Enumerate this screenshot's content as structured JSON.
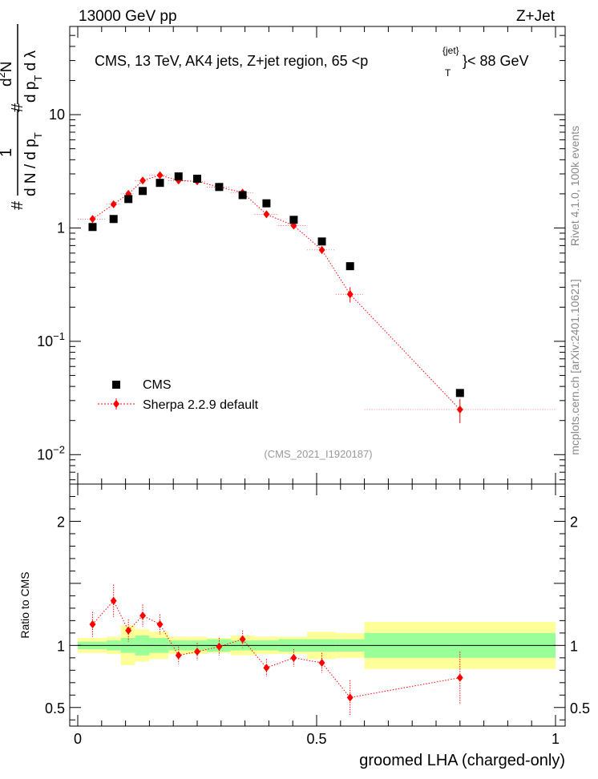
{
  "header": {
    "left": "13000 GeV pp",
    "right": "Z+Jet"
  },
  "side_text": {
    "rivet": "Rivet 4.1.0,  100k events",
    "mcplots": "mcplots.cern.ch [arXiv:2401.10621]"
  },
  "watermark": "(CMS_2021_I1920187)",
  "main_title": {
    "prefix": "CMS, 13 TeV, AK4 jets, Z+jet region, 65 <p",
    "sup": "{jet}",
    "sub": "T",
    "suffix": "}< 88 GeV"
  },
  "ylabel": {
    "hash1": "#",
    "one": "1",
    "denom": "d N / d p",
    "denom_sub": "T",
    "hash2": "#",
    "num": "d",
    "num_sup": "2",
    "num_rest": "N",
    "den2": "d p",
    "den2_sub": "T",
    "den2_rest": " d λ"
  },
  "ratio_ylabel": "Ratio to CMS",
  "xlabel": "groomed LHA (charged-only)",
  "legend": {
    "cms": "CMS",
    "sherpa": "Sherpa 2.2.9 default"
  },
  "colors": {
    "mc": "#ff0000",
    "band_yellow": "#ffff99",
    "band_green": "#99ff99",
    "data": "#000000"
  },
  "chart_data": {
    "type": "scatter",
    "title": "CMS, 13 TeV, AK4 jets, Z+jet region, 65 <p_T^{jet}< 88 GeV",
    "xlabel": "groomed LHA (charged-only)",
    "ylabel": "1/(dN/dp_T) d²N/(dp_T dλ)",
    "xlim": [
      0,
      1
    ],
    "ylim_log": [
      0.0055,
      60
    ],
    "yticks_main": [
      {
        "v": 0.01,
        "base": "10",
        "exp": "−2"
      },
      {
        "v": 0.1,
        "base": "10",
        "exp": "−1"
      },
      {
        "v": 1,
        "base": "1",
        "exp": ""
      },
      {
        "v": 10,
        "base": "10",
        "exp": ""
      }
    ],
    "xticks": [
      {
        "v": 0,
        "label": "0"
      },
      {
        "v": 0.5,
        "label": "0.5"
      },
      {
        "v": 1,
        "label": "1"
      }
    ],
    "bins": [
      {
        "lo": 0.0,
        "hi": 0.06,
        "x": 0.031,
        "cms": 1.02,
        "mc": 1.2,
        "mc_err": 0.08,
        "ratio": 1.17,
        "ratio_err": 0.1,
        "stat": 0.03,
        "tot": 0.06
      },
      {
        "lo": 0.06,
        "hi": 0.09,
        "x": 0.075,
        "cms": 1.2,
        "mc": 1.62,
        "mc_err": 0.1,
        "ratio": 1.36,
        "ratio_err": 0.13,
        "stat": 0.04,
        "tot": 0.07
      },
      {
        "lo": 0.09,
        "hi": 0.12,
        "x": 0.106,
        "cms": 1.8,
        "mc": 2.0,
        "mc_err": 0.12,
        "ratio": 1.12,
        "ratio_err": 0.09,
        "stat": 0.06,
        "tot": 0.16
      },
      {
        "lo": 0.12,
        "hi": 0.15,
        "x": 0.136,
        "cms": 2.12,
        "mc": 2.62,
        "mc_err": 0.14,
        "ratio": 1.24,
        "ratio_err": 0.09,
        "stat": 0.08,
        "tot": 0.13
      },
      {
        "lo": 0.15,
        "hi": 0.19,
        "x": 0.172,
        "cms": 2.5,
        "mc": 2.92,
        "mc_err": 0.15,
        "ratio": 1.17,
        "ratio_err": 0.08,
        "stat": 0.06,
        "tot": 0.11
      },
      {
        "lo": 0.19,
        "hi": 0.23,
        "x": 0.211,
        "cms": 2.85,
        "mc": 2.62,
        "mc_err": 0.13,
        "ratio": 0.92,
        "ratio_err": 0.07,
        "stat": 0.04,
        "tot": 0.07
      },
      {
        "lo": 0.23,
        "hi": 0.27,
        "x": 0.25,
        "cms": 2.72,
        "mc": 2.58,
        "mc_err": 0.12,
        "ratio": 0.95,
        "ratio_err": 0.07,
        "stat": 0.04,
        "tot": 0.07
      },
      {
        "lo": 0.27,
        "hi": 0.32,
        "x": 0.296,
        "cms": 2.3,
        "mc": 2.3,
        "mc_err": 0.11,
        "ratio": 0.99,
        "ratio_err": 0.07,
        "stat": 0.05,
        "tot": 0.06
      },
      {
        "lo": 0.32,
        "hi": 0.37,
        "x": 0.345,
        "cms": 1.95,
        "mc": 2.05,
        "mc_err": 0.1,
        "ratio": 1.05,
        "ratio_err": 0.07,
        "stat": 0.04,
        "tot": 0.08
      },
      {
        "lo": 0.37,
        "hi": 0.42,
        "x": 0.395,
        "cms": 1.65,
        "mc": 1.32,
        "mc_err": 0.08,
        "ratio": 0.82,
        "ratio_err": 0.07,
        "stat": 0.04,
        "tot": 0.07
      },
      {
        "lo": 0.42,
        "hi": 0.48,
        "x": 0.452,
        "cms": 1.18,
        "mc": 1.05,
        "mc_err": 0.07,
        "ratio": 0.9,
        "ratio_err": 0.07,
        "stat": 0.05,
        "tot": 0.07
      },
      {
        "lo": 0.48,
        "hi": 0.54,
        "x": 0.511,
        "cms": 0.76,
        "mc": 0.64,
        "mc_err": 0.05,
        "ratio": 0.86,
        "ratio_err": 0.08,
        "stat": 0.05,
        "tot": 0.11
      },
      {
        "lo": 0.54,
        "hi": 0.6,
        "x": 0.57,
        "cms": 0.46,
        "mc": 0.26,
        "mc_err": 0.04,
        "ratio": 0.58,
        "ratio_err": 0.14,
        "stat": 0.05,
        "tot": 0.1
      },
      {
        "lo": 0.6,
        "hi": 1.0,
        "x": 0.8,
        "cms": 0.035,
        "mc": 0.025,
        "mc_err": 0.006,
        "ratio": 0.74,
        "ratio_err": 0.21,
        "stat": 0.1,
        "tot": 0.19
      }
    ],
    "ratio_ylim": [
      0.35,
      2.3
    ],
    "ratio_yticks": [
      {
        "v": 0.5,
        "label": "0.5"
      },
      {
        "v": 1,
        "label": "1"
      },
      {
        "v": 2,
        "label": "2"
      }
    ]
  }
}
